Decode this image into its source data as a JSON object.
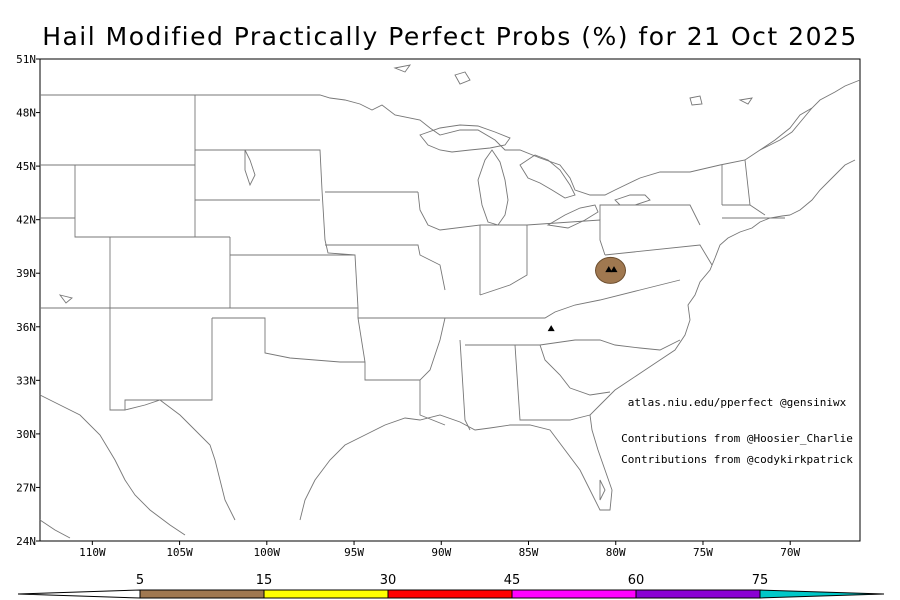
{
  "title": "Hail Modified Practically Perfect Probs (%) for 21 Oct 2025",
  "map": {
    "lat_ticks": [
      "51N",
      "48N",
      "45N",
      "42N",
      "39N",
      "36N",
      "33N",
      "30N",
      "27N",
      "24N"
    ],
    "lon_ticks": [
      "110W",
      "105W",
      "100W",
      "95W",
      "90W",
      "85W",
      "80W",
      "75W",
      "70W"
    ],
    "lat_range": [
      24,
      51
    ],
    "lon_range": [
      -113,
      -66
    ],
    "contours": [
      {
        "name": "hail-prob-5-contour",
        "level": 5,
        "color": "#a07850",
        "center_lon": -80.3,
        "center_lat": 39.1
      }
    ],
    "reports": [
      {
        "name": "hail-report-marker",
        "lon": -80.4,
        "lat": 39.2
      },
      {
        "name": "hail-report-marker",
        "lon": -80.1,
        "lat": 39.2
      },
      {
        "name": "hail-report-marker",
        "lon": -83.7,
        "lat": 35.9
      }
    ]
  },
  "credits": {
    "site": "atlas.niu.edu/pperfect @gensiniwx",
    "contrib1": "Contributions from @Hoosier_Charlie",
    "contrib2": "Contributions from @codykirkpatrick"
  },
  "colorbar": {
    "labels": [
      "5",
      "15",
      "30",
      "45",
      "60",
      "75"
    ],
    "colors": [
      "#a07850",
      "#ffff00",
      "#ff0000",
      "#ff00ff",
      "#8a00d4",
      "#00c8c8"
    ]
  }
}
